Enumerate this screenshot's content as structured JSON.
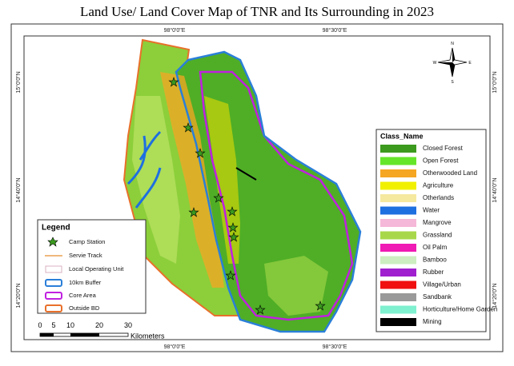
{
  "title": "Land Use/ Land Cover Map of TNR and Its Surrounding in 2023",
  "grid_labels": {
    "top": [
      "98°0'0\"E",
      "98°30'0\"E"
    ],
    "bottom": [
      "98°0'0\"E",
      "98°30'0\"E"
    ],
    "left": [
      "15°0'0\"N",
      "14°40'0\"N",
      "14°20'0\"N"
    ],
    "right": [
      "15°0'0\"N",
      "14°40'0\"N",
      "14°20'0\"N"
    ]
  },
  "legend": {
    "title": "Legend",
    "items": [
      "Camp Station",
      "Servie Track",
      "Local Operating Unit",
      "10km Buffer",
      "Core Area",
      "Outside BD"
    ]
  },
  "classes": {
    "title": "Class_Name",
    "items": [
      {
        "label": "Closed Forest",
        "color": "#3c9a1e"
      },
      {
        "label": "Open Forest",
        "color": "#66e62a"
      },
      {
        "label": "Otherwooded Land",
        "color": "#f5a623"
      },
      {
        "label": "Agriculture",
        "color": "#f0f000"
      },
      {
        "label": "Otherlands",
        "color": "#f5e9a0"
      },
      {
        "label": "Water",
        "color": "#1e6fe0"
      },
      {
        "label": "Mangrove",
        "color": "#f5b8d8"
      },
      {
        "label": "Grassland",
        "color": "#a8d84a"
      },
      {
        "label": "Oil Palm",
        "color": "#f01ab4"
      },
      {
        "label": "Bamboo",
        "color": "#cdeec0"
      },
      {
        "label": "Rubber",
        "color": "#a020d0"
      },
      {
        "label": "Village/Urban",
        "color": "#f01010"
      },
      {
        "label": "Sandbank",
        "color": "#9a9a9a"
      },
      {
        "label": "Horticulture/Home Garden",
        "color": "#7ff0d0"
      },
      {
        "label": "Mining",
        "color": "#000000"
      }
    ]
  },
  "scale_bar": {
    "ticks": [
      "0",
      "5",
      "10",
      "20",
      "30"
    ],
    "unit": "Kilometers"
  },
  "north_arrow": [
    "N",
    "E",
    "S",
    "W"
  ]
}
